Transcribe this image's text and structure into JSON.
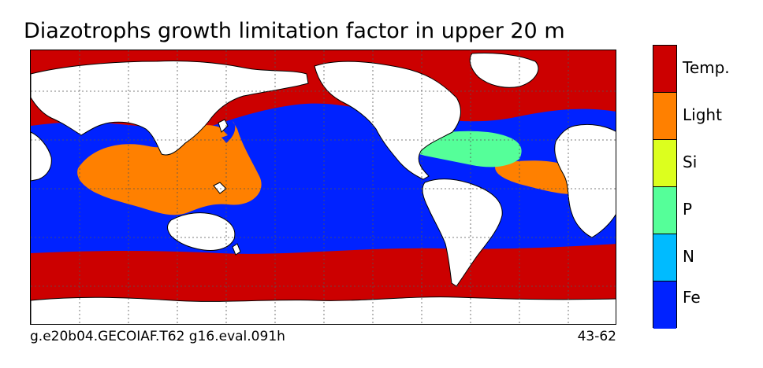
{
  "title": "Diazotrophs growth limitation factor in upper 20 m",
  "footer": {
    "run_id": "g.e20b04.GECOIAF.T62 g16.eval.091h",
    "years": "43-62"
  },
  "legend": [
    {
      "label": "Temp.",
      "color": "#cc0000"
    },
    {
      "label": "Light",
      "color": "#ff8000"
    },
    {
      "label": "Si",
      "color": "#dcff1e"
    },
    {
      "label": "P",
      "color": "#55ff99"
    },
    {
      "label": "N",
      "color": "#00bbff"
    },
    {
      "label": "Fe",
      "color": "#0022ff"
    }
  ],
  "land_color": "#ffffff",
  "coastline_color": "#000000"
}
